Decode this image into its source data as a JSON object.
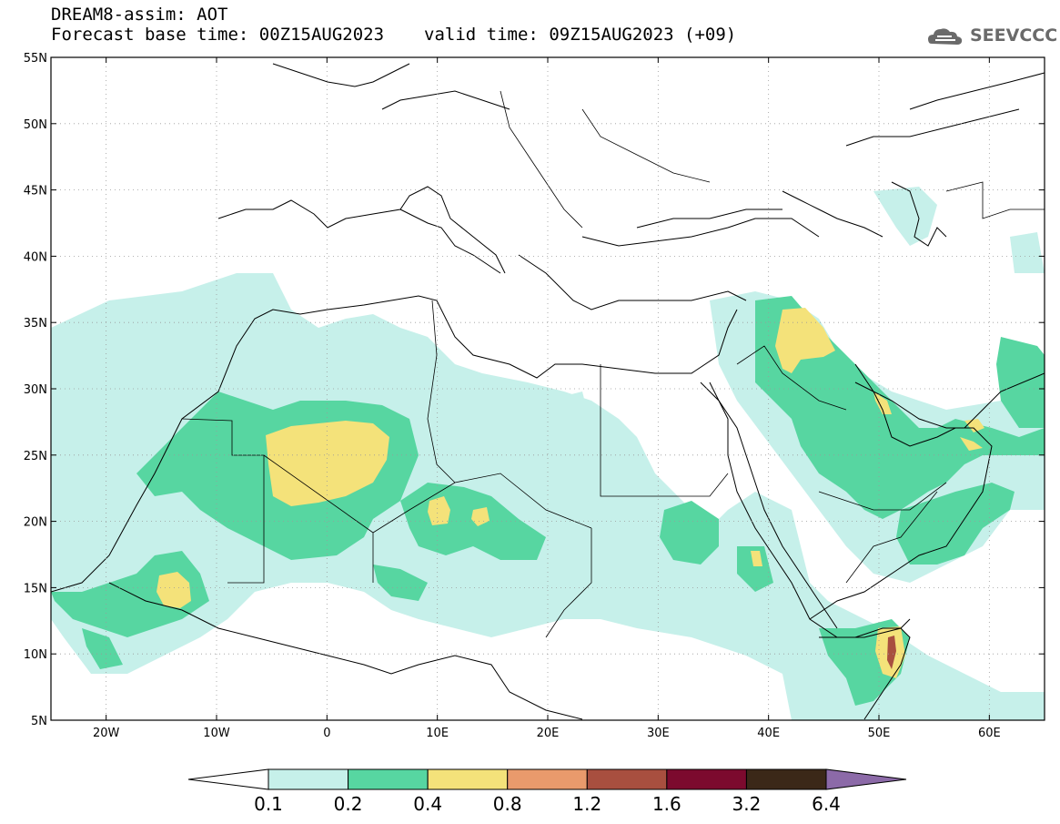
{
  "header": {
    "title": "DREAM8-assim: AOT",
    "base_time": "Forecast base time: 00Z15AUG2023",
    "valid_time": "valid time: 09Z15AUG2023 (+09)"
  },
  "logo": {
    "text": "SEEVCCC",
    "icon": "cloud-icon"
  },
  "map": {
    "lon_range": [
      -25,
      65
    ],
    "lat_range": [
      5,
      55
    ],
    "lat_ticks": [
      "55N",
      "50N",
      "45N",
      "40N",
      "35N",
      "30N",
      "25N",
      "20N",
      "15N",
      "10N",
      "5N"
    ],
    "lon_ticks": [
      "20W",
      "10W",
      "0",
      "10E",
      "20E",
      "30E",
      "40E",
      "50E",
      "60E"
    ],
    "grid": "dotted"
  },
  "colorbar": {
    "labels": [
      "0.1",
      "0.2",
      "0.4",
      "0.8",
      "1.2",
      "1.6",
      "3.2",
      "6.4"
    ],
    "colors": [
      "#c6f0ea",
      "#57d6a1",
      "#f4e27a",
      "#e99a6c",
      "#a84f3f",
      "#7c0a2e",
      "#3b2818",
      "#8c6aa8"
    ]
  }
}
